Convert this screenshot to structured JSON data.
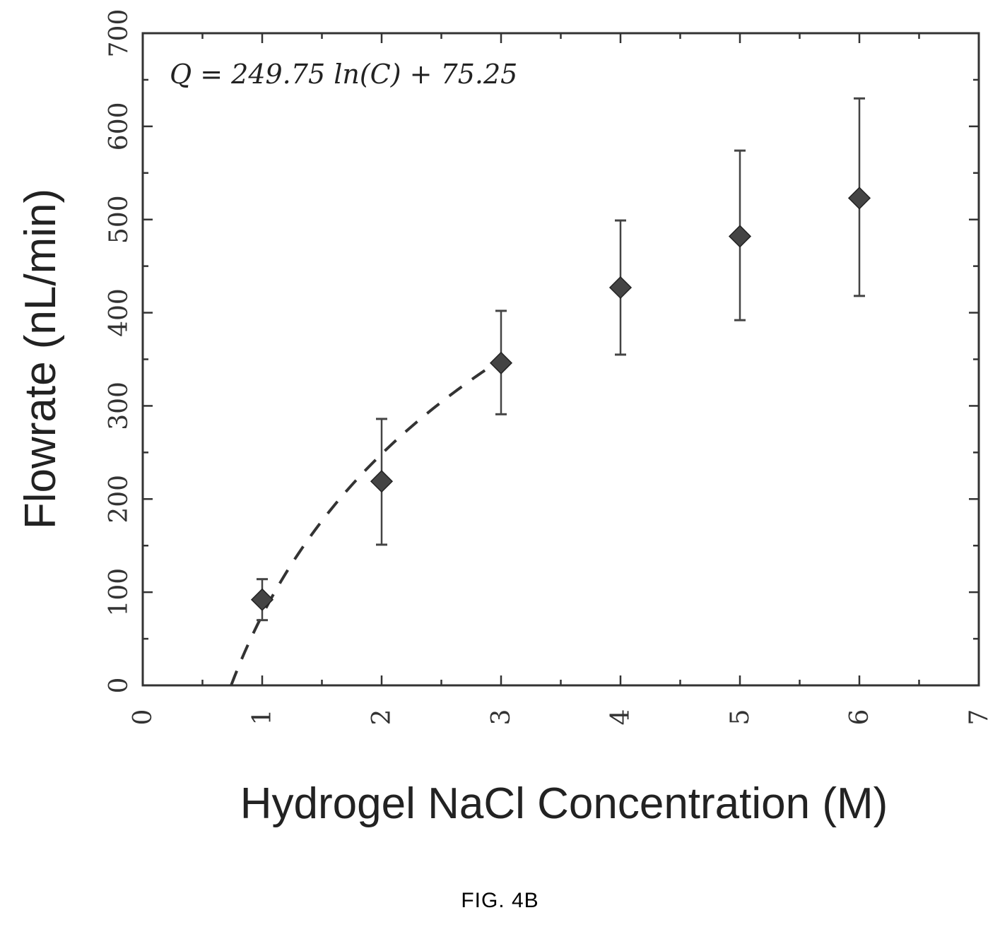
{
  "figure": {
    "caption": "FIG. 4B"
  },
  "chart_data": {
    "type": "scatter",
    "title": "",
    "xlabel": "Hydrogel NaCl Concentration (M)",
    "ylabel": "Flowrate (nL/min)",
    "xlim": [
      0,
      7
    ],
    "ylim": [
      0,
      700
    ],
    "xticks": [
      0,
      1,
      2,
      3,
      4,
      5,
      6,
      7
    ],
    "yticks": [
      0,
      100,
      200,
      300,
      400,
      500,
      600,
      700
    ],
    "grid": false,
    "annotation": "Q = 249.75 ln(C) + 75.25",
    "series": [
      {
        "marker": "diamond",
        "color": "#444444",
        "points": [
          {
            "x": 1,
            "y": 92,
            "ymin": 70,
            "ymax": 114
          },
          {
            "x": 2,
            "y": 219,
            "ymin": 151,
            "ymax": 286
          },
          {
            "x": 3,
            "y": 346,
            "ymin": 291,
            "ymax": 402
          },
          {
            "x": 4,
            "y": 427,
            "ymin": 355,
            "ymax": 499
          },
          {
            "x": 5,
            "y": 482,
            "ymin": 392,
            "ymax": 574
          },
          {
            "x": 6,
            "y": 523,
            "ymin": 418,
            "ymax": 630
          }
        ]
      }
    ],
    "fit": {
      "style": "dashed",
      "a": 249.75,
      "b": 75.25,
      "x_range": [
        0.74,
        3.0
      ]
    }
  }
}
